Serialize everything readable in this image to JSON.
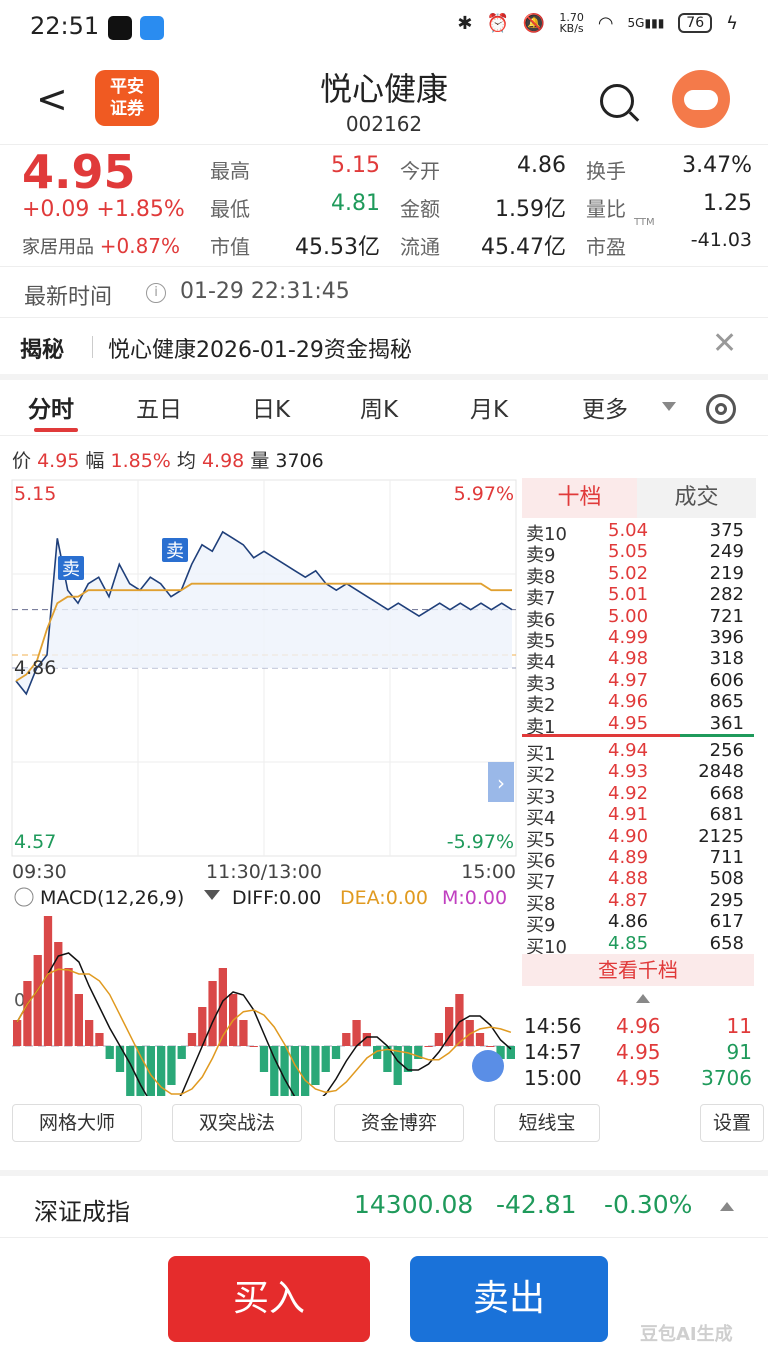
{
  "status_bar": {
    "time": "22:51",
    "net_speed": "1.70",
    "net_unit": "KB/s",
    "signal": "5G",
    "battery": "76"
  },
  "header": {
    "back_label": "<",
    "logo_line1": "平安",
    "logo_line2": "证券",
    "stock_name": "悦心健康",
    "stock_code": "002162"
  },
  "quote": {
    "price": "4.95",
    "change": "+0.09 +1.85%",
    "sector_name": "家居用品",
    "sector_change": "+0.87%",
    "rows": [
      [
        {
          "k": "最高",
          "v": "5.15",
          "c": "red"
        },
        {
          "k": "今开",
          "v": "4.86",
          "c": "dark"
        },
        {
          "k": "换手",
          "v": "3.47%",
          "c": "dark"
        }
      ],
      [
        {
          "k": "最低",
          "v": "4.81",
          "c": "green"
        },
        {
          "k": "金额",
          "v": "1.59亿",
          "c": "dark"
        },
        {
          "k": "量比",
          "v": "1.25",
          "c": "dark"
        }
      ],
      [
        {
          "k": "市值",
          "v": "45.53亿",
          "c": "dark"
        },
        {
          "k": "流通",
          "v": "45.47亿",
          "c": "dark"
        },
        {
          "k": "市盈",
          "v": "-41.03",
          "c": "dark"
        }
      ]
    ],
    "pe_sup": "TTM"
  },
  "latest_time": {
    "label": "最新时间",
    "value": "01-29 22:31:45"
  },
  "reveal": {
    "tag": "揭秘",
    "text": "悦心健康2026-01-29资金揭秘"
  },
  "tabs": [
    "分时",
    "五日",
    "日K",
    "周K",
    "月K",
    "更多"
  ],
  "price_info": {
    "price_label": "价",
    "price": "4.95",
    "amp_label": "幅",
    "amp": "1.85%",
    "avg_label": "均",
    "avg": "4.98",
    "vol_label": "量",
    "vol": "3706"
  },
  "chart_data": {
    "type": "line",
    "ylim": [
      4.57,
      5.15
    ],
    "y_labels_left": [
      "5.15",
      "4.86",
      "4.57"
    ],
    "y_labels_right": [
      "5.97%",
      "-5.97%"
    ],
    "x_labels": [
      "09:30",
      "11:30/13:00",
      "15:00"
    ],
    "prev_close": 4.86,
    "markers": [
      "卖",
      "卖"
    ],
    "series": [
      {
        "values": [
          4.84,
          4.82,
          4.86,
          4.88,
          5.06,
          4.98,
          4.96,
          4.99,
          5.0,
          4.97,
          5.02,
          4.99,
          4.98,
          5.0,
          4.99,
          4.97,
          4.98,
          5.02,
          5.05,
          5.04,
          5.07,
          5.06,
          5.05,
          5.03,
          5.04,
          5.03,
          5.02,
          5.01,
          5.0,
          5.01,
          4.99,
          4.98,
          4.99,
          4.98,
          4.97,
          4.96,
          4.95,
          4.96,
          4.95,
          4.94,
          4.95,
          4.96,
          4.95,
          4.96,
          4.95,
          4.96,
          4.95,
          4.96,
          4.95
        ]
      },
      {
        "values": [
          4.84,
          4.85,
          4.87,
          4.92,
          4.96,
          4.97,
          4.97,
          4.98,
          4.98,
          4.98,
          4.98,
          4.98,
          4.98,
          4.98,
          4.98,
          4.98,
          4.98,
          4.99,
          4.99,
          4.99,
          4.99,
          4.99,
          4.99,
          4.99,
          4.99,
          4.99,
          4.99,
          4.99,
          4.99,
          4.99,
          4.99,
          4.99,
          4.99,
          4.99,
          4.99,
          4.99,
          4.99,
          4.99,
          4.99,
          4.99,
          4.99,
          4.99,
          4.99,
          4.99,
          4.99,
          4.99,
          4.98,
          4.98,
          4.98
        ]
      }
    ]
  },
  "macd": {
    "title": "MACD(12,26,9)",
    "diff": "DIFF:0.00",
    "dea": "DEA:0.00",
    "m": "M:0.00",
    "zero_label": "0.",
    "bars": [
      0.2,
      0.5,
      0.7,
      1.0,
      0.8,
      0.6,
      0.4,
      0.2,
      0.1,
      -0.1,
      -0.2,
      -0.4,
      -0.6,
      -0.7,
      -0.5,
      -0.3,
      -0.1,
      0.1,
      0.3,
      0.5,
      0.6,
      0.4,
      0.2,
      0.0,
      -0.2,
      -0.4,
      -0.5,
      -0.6,
      -0.5,
      -0.3,
      -0.2,
      -0.1,
      0.1,
      0.2,
      0.1,
      -0.1,
      -0.2,
      -0.3,
      -0.2,
      -0.1,
      0.0,
      0.1,
      0.3,
      0.4,
      0.2,
      0.1,
      0.0,
      -0.1,
      -0.1
    ]
  },
  "order_book": {
    "tab_active": "十档",
    "tab_inactive": "成交",
    "asks": [
      {
        "label": "卖10",
        "price": "5.04",
        "vol": "375"
      },
      {
        "label": "卖9",
        "price": "5.05",
        "vol": "249"
      },
      {
        "label": "卖8",
        "price": "5.02",
        "vol": "219"
      },
      {
        "label": "卖7",
        "price": "5.01",
        "vol": "282"
      },
      {
        "label": "卖6",
        "price": "5.00",
        "vol": "721"
      },
      {
        "label": "卖5",
        "price": "4.99",
        "vol": "396"
      },
      {
        "label": "卖4",
        "price": "4.98",
        "vol": "318"
      },
      {
        "label": "卖3",
        "price": "4.97",
        "vol": "606"
      },
      {
        "label": "卖2",
        "price": "4.96",
        "vol": "865"
      },
      {
        "label": "卖1",
        "price": "4.95",
        "vol": "361"
      }
    ],
    "bids": [
      {
        "label": "买1",
        "price": "4.94",
        "vol": "256"
      },
      {
        "label": "买2",
        "price": "4.93",
        "vol": "2848"
      },
      {
        "label": "买3",
        "price": "4.92",
        "vol": "668"
      },
      {
        "label": "买4",
        "price": "4.91",
        "vol": "681"
      },
      {
        "label": "买5",
        "price": "4.90",
        "vol": "2125"
      },
      {
        "label": "买6",
        "price": "4.89",
        "vol": "711"
      },
      {
        "label": "买7",
        "price": "4.88",
        "vol": "508"
      },
      {
        "label": "买8",
        "price": "4.87",
        "vol": "295"
      },
      {
        "label": "买9",
        "price": "4.86",
        "vol": "617"
      },
      {
        "label": "买10",
        "price": "4.85",
        "vol": "658"
      }
    ],
    "view_all": "查看千档",
    "trades": [
      {
        "time": "14:56",
        "price": "4.96",
        "vol": "11",
        "c": "red"
      },
      {
        "time": "14:57",
        "price": "4.95",
        "vol": "91",
        "c": "green"
      },
      {
        "time": "15:00",
        "price": "4.95",
        "vol": "3706",
        "c": "green"
      }
    ]
  },
  "tools": [
    "网格大师",
    "双突战法",
    "资金博弈",
    "短线宝",
    "设置"
  ],
  "index": {
    "name": "深证成指",
    "value": "14300.08",
    "change": "-42.81",
    "pct": "-0.30%"
  },
  "actions": {
    "buy": "买入",
    "sell": "卖出"
  },
  "watermark": "豆包AI生成",
  "colors": {
    "up": "#e03a3a",
    "down": "#1f9a5b",
    "buy_btn": "#e52c2c",
    "sell_btn": "#1a72d9",
    "price_line": "#1f3f7a",
    "avg_line": "#e0a030"
  }
}
